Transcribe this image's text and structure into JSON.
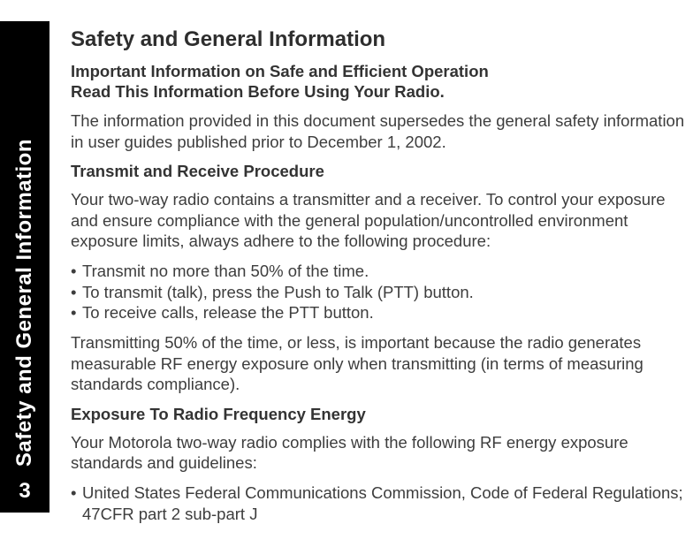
{
  "colors": {
    "page_bg": "#ffffff",
    "tab_bg": "#000000",
    "tab_text": "#ffffff",
    "body_text": "#3d3d3d",
    "heading_text": "#2e2e2e",
    "bold_text": "#333333"
  },
  "typography": {
    "body_fontsize_pt": 14,
    "heading_fontsize_pt": 18,
    "sidebar_fontsize_pt": 18,
    "font_family": "Arial"
  },
  "sidebar": {
    "label": "Safety and General Information",
    "page_number": "3"
  },
  "doc": {
    "title": "Safety and General Information",
    "subhead_line1": "Important Information on Safe and Efficient Operation",
    "subhead_line2": "Read This Information Before Using Your Radio.",
    "intro_para": "The information provided in this document supersedes the general safety information in user guides published prior to December 1, 2002.",
    "section1_title": "Transmit and Receive Procedure",
    "section1_para1": "Your two-way radio contains a transmitter and a receiver. To control your exposure and ensure compliance with the general population/uncontrolled environment exposure limits, always adhere to the following procedure:",
    "section1_bullets": [
      "Transmit no more than 50% of the time.",
      "To transmit (talk), press the Push to Talk (PTT) button.",
      "To receive calls, release the PTT button."
    ],
    "section1_para2": "Transmitting 50% of the time, or less, is important because the radio generates measurable RF energy exposure only when transmitting (in terms of measuring standards compliance).",
    "section2_title": "Exposure To Radio Frequency Energy",
    "section2_para1": "Your Motorola two-way radio complies with the following RF energy exposure standards and guidelines:",
    "section2_bullets": [
      "United States Federal Communications Commission, Code of Federal Regulations; 47CFR part 2 sub-part J"
    ],
    "bullet_glyph": "•"
  }
}
